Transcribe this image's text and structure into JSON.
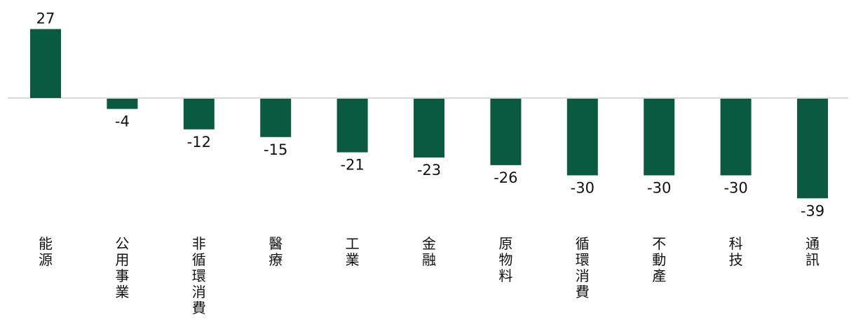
{
  "chart_data": {
    "type": "bar",
    "categories": [
      "能源",
      "公用事業",
      "非循環消費",
      "醫療",
      "工業",
      "金融",
      "原物料",
      "循環消費",
      "不動產",
      "科技",
      "通訊"
    ],
    "values": [
      27,
      -4,
      -12,
      -15,
      -21,
      -23,
      -26,
      -30,
      -30,
      -30,
      -39
    ],
    "value_labels": [
      "27",
      "-4",
      "-12",
      "-15",
      "-21",
      "-23",
      "-26",
      "-30",
      "-30",
      "-30",
      "-39"
    ],
    "title": "",
    "xlabel": "",
    "ylabel": "",
    "ylim": [
      -44,
      40
    ],
    "grid": false,
    "legend": "none",
    "bar_color": "#0a5a41",
    "baseline_color": "#d9d9d9"
  }
}
